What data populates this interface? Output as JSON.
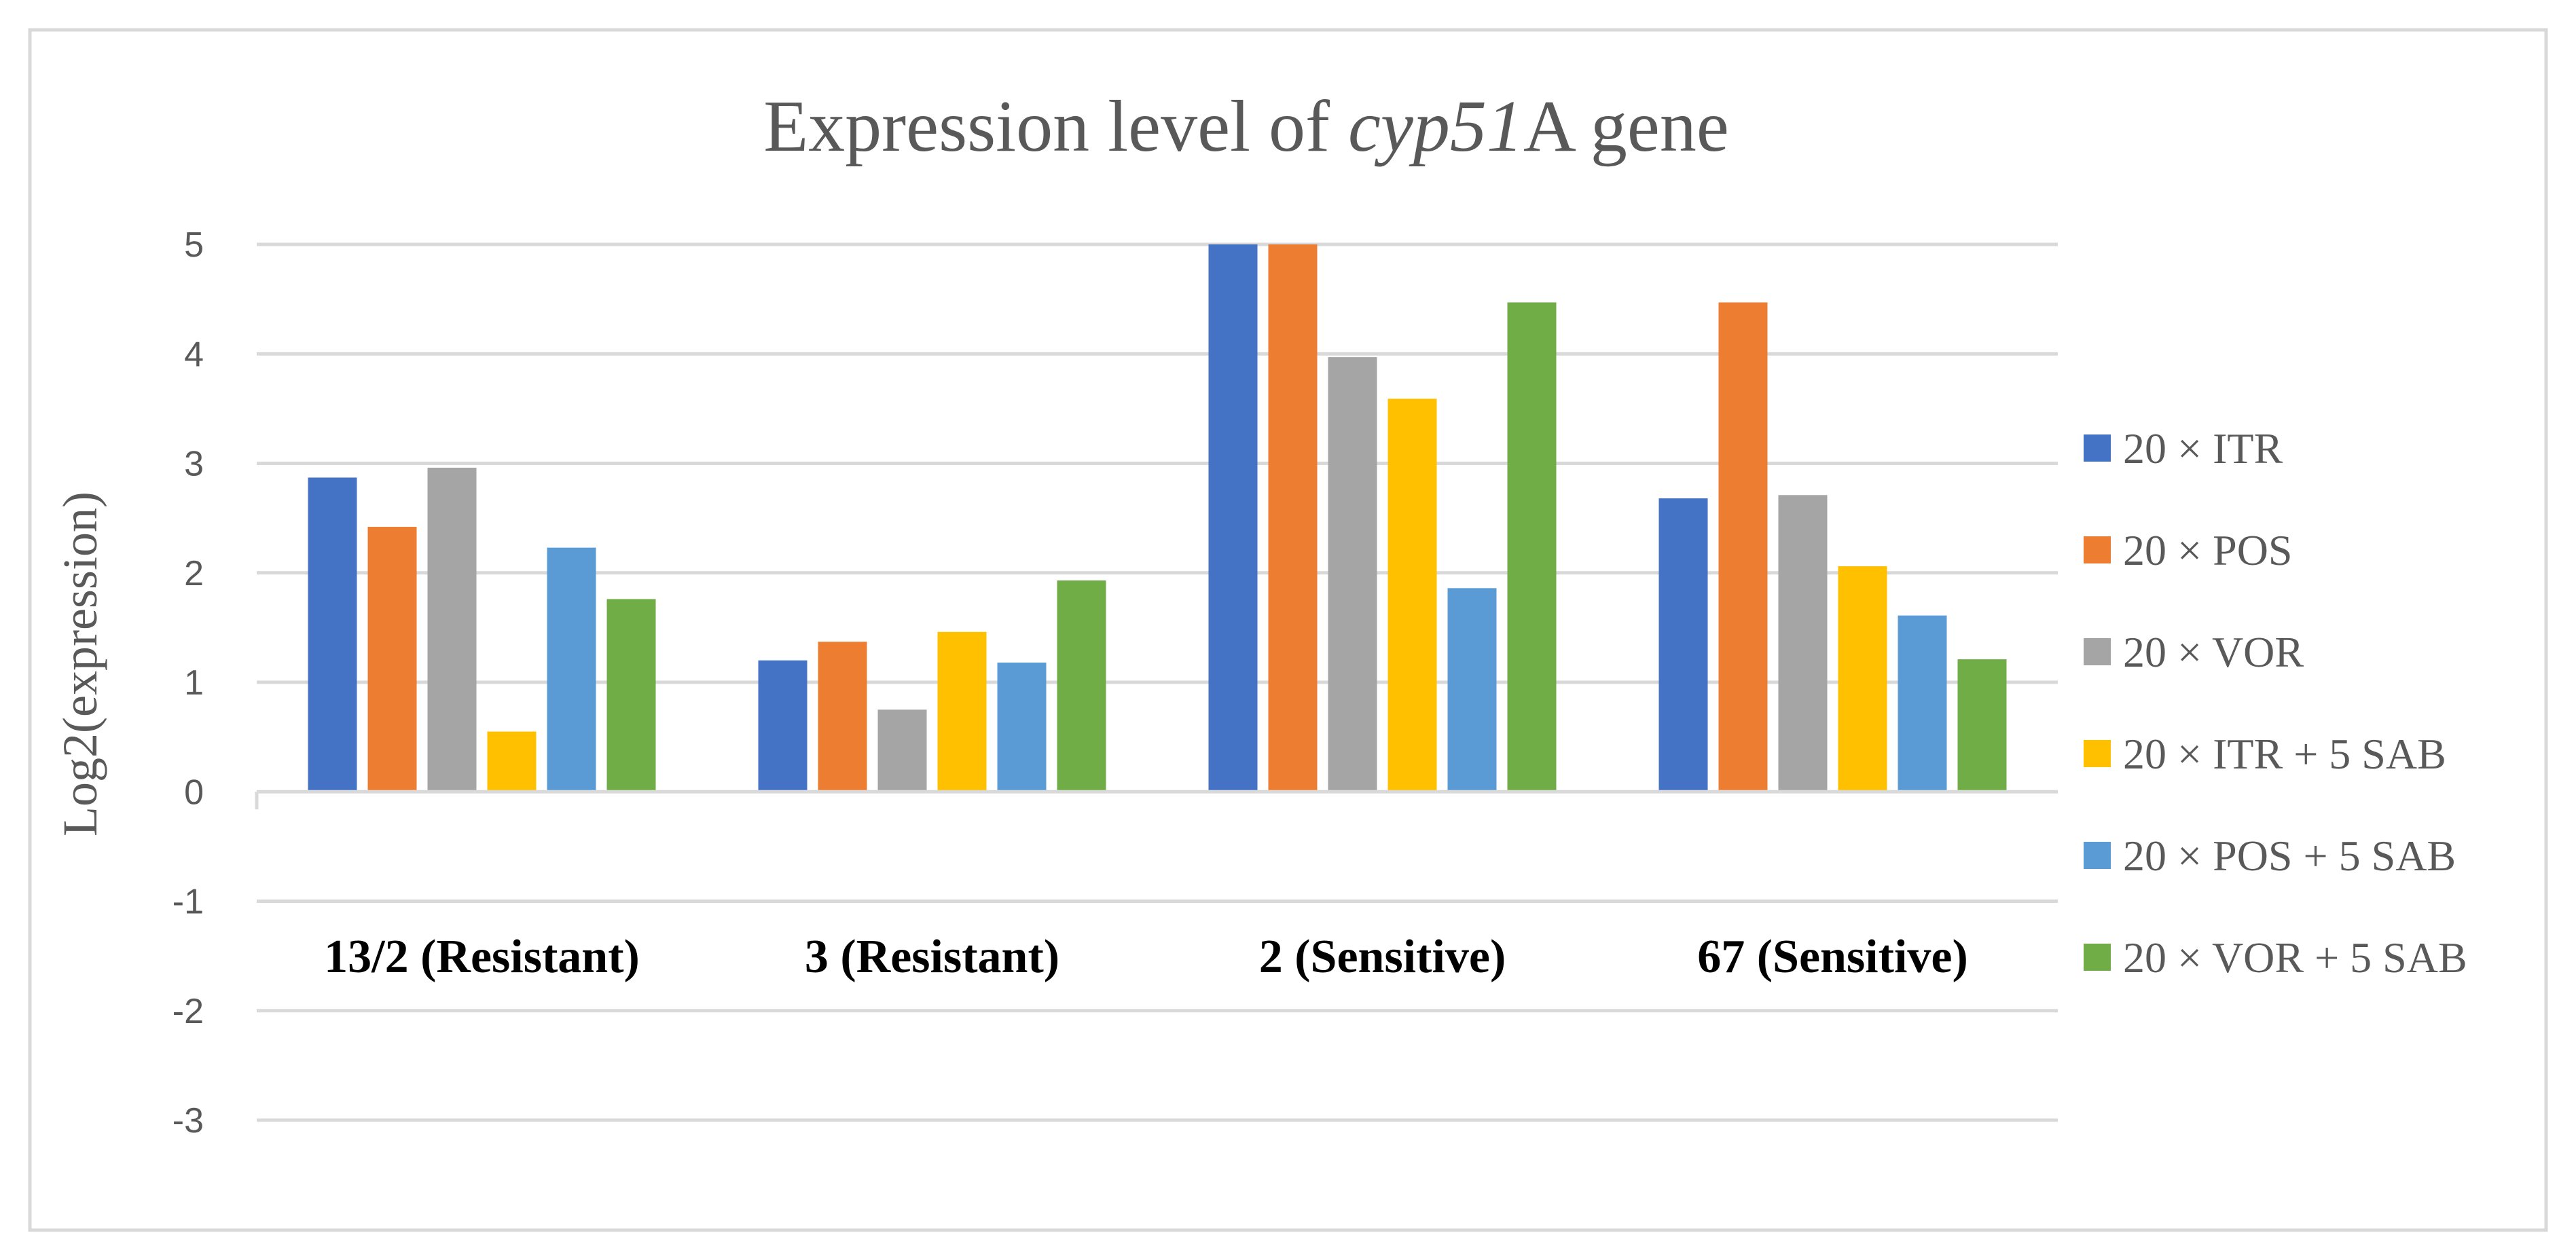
{
  "chart_data": {
    "type": "bar",
    "title_prefix": "Expression level of ",
    "title_italic": "cyp51",
    "title_suffix": "A gene",
    "ylabel": "Log2(expression)",
    "xlabel": "",
    "ylim": [
      -3,
      5
    ],
    "yticks": [
      5,
      4,
      3,
      2,
      1,
      0,
      -1,
      -2,
      -3
    ],
    "grid": true,
    "legend_position": "right",
    "categories": [
      "13/2 (Resistant)",
      "3 (Resistant)",
      "2 (Sensitive)",
      "67 (Sensitive)"
    ],
    "series": [
      {
        "name": "20 × ITR",
        "color": "#4472c4",
        "values": [
          2.87,
          1.2,
          5.0,
          2.68
        ]
      },
      {
        "name": "20 × POS",
        "color": "#ed7d31",
        "values": [
          2.42,
          1.37,
          5.0,
          4.47
        ]
      },
      {
        "name": "20 × VOR",
        "color": "#a5a5a5",
        "values": [
          2.96,
          0.75,
          3.97,
          2.71
        ]
      },
      {
        "name": "20 × ITR + 5 SAB",
        "color": "#ffc000",
        "values": [
          0.55,
          1.46,
          3.59,
          2.06
        ]
      },
      {
        "name": "20 × POS + 5 SAB",
        "color": "#5b9bd5",
        "values": [
          2.23,
          1.18,
          1.86,
          1.61
        ]
      },
      {
        "name": "20 × VOR + 5 SAB",
        "color": "#70ad47",
        "values": [
          1.76,
          1.93,
          4.47,
          1.21
        ]
      }
    ]
  }
}
